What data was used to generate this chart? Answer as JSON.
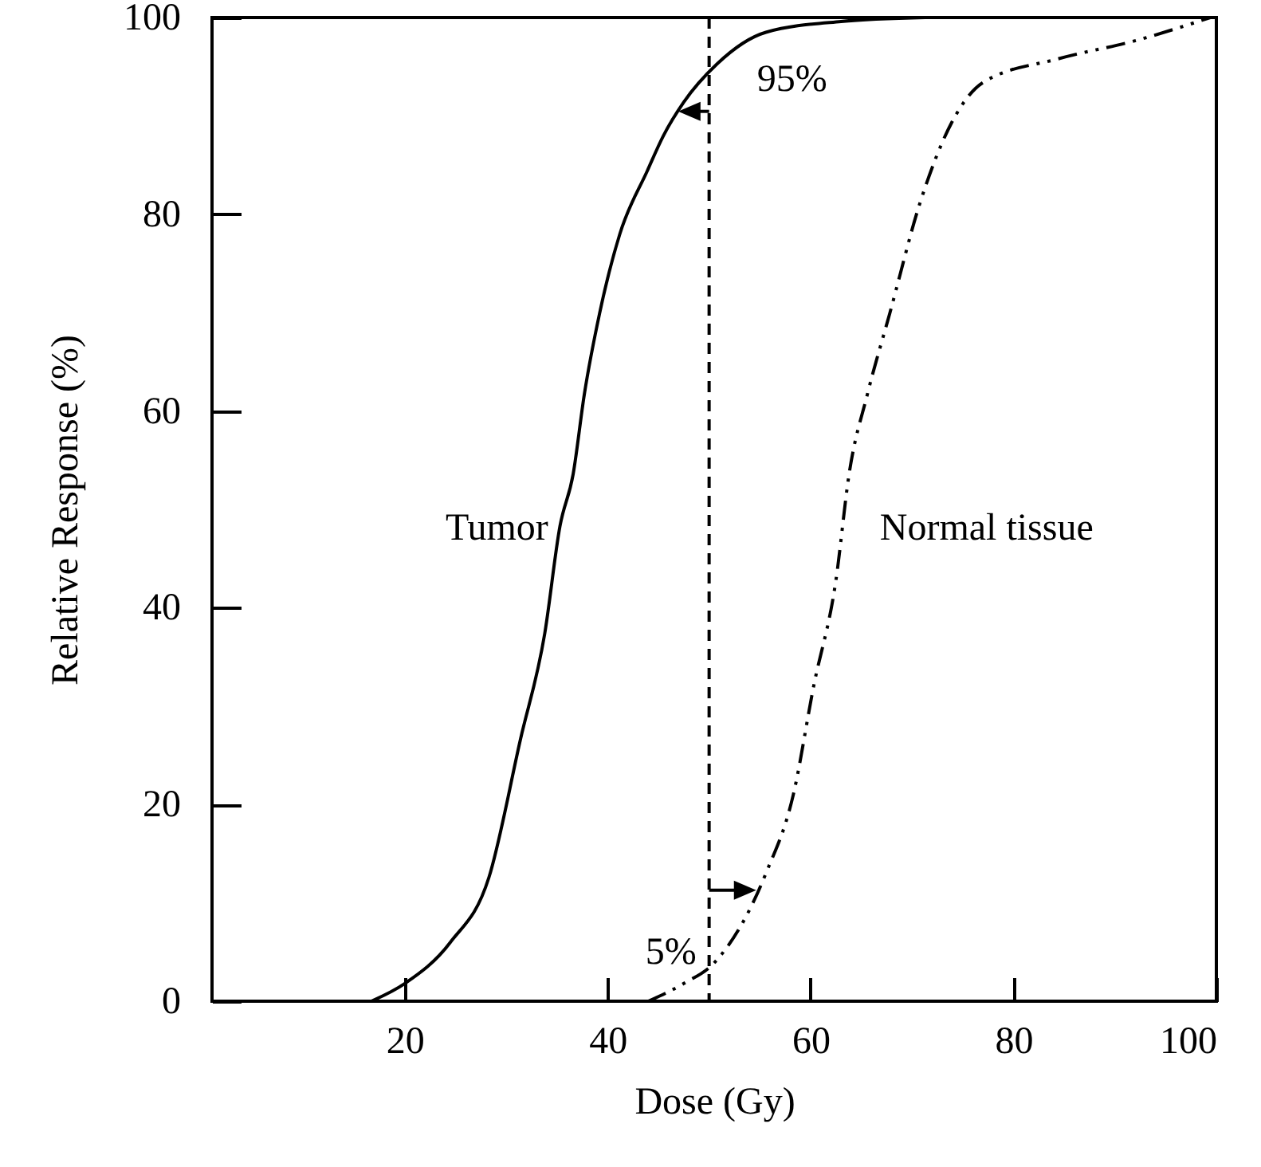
{
  "chart_data": {
    "type": "line",
    "xlabel": "Dose (Gy)",
    "ylabel": "Relative Response (%)",
    "xlim": [
      1,
      100
    ],
    "ylim": [
      0,
      100
    ],
    "xticks": [
      20,
      40,
      60,
      80,
      100
    ],
    "yticks": [
      0,
      20,
      40,
      60,
      80,
      100
    ],
    "series": [
      {
        "name": "Tumor",
        "color": "#000000",
        "line_style": "solid",
        "x": [
          16.7,
          20,
          24.5,
          28.3,
          31.4,
          33.8,
          35.3,
          36.6,
          37.7,
          39.2,
          41.2,
          43.9,
          45.5,
          47.5,
          50.8,
          55.6,
          63,
          71.3
        ],
        "values": [
          0,
          1.8,
          6,
          12.6,
          26.6,
          37.4,
          48.3,
          53.6,
          61.7,
          69.9,
          78,
          84.4,
          88,
          91.4,
          95.3,
          98.5,
          99.6,
          100
        ]
      },
      {
        "name": "Normal tissue",
        "color": "#000000",
        "line_style": "dashed",
        "x": [
          44,
          47.5,
          50.5,
          55.6,
          58.3,
          60.3,
          62.5,
          63.8,
          65.6,
          67.8,
          70.8,
          73.9,
          77,
          84.4,
          92.2,
          99.4
        ],
        "values": [
          0,
          1.8,
          3.9,
          13,
          21,
          32,
          42.8,
          53.6,
          61.7,
          69.9,
          81.2,
          89.3,
          93.4,
          95.8,
          97.7,
          100
        ]
      }
    ],
    "ref_lines": [
      {
        "axis": "x",
        "value": 50,
        "color": "#000000",
        "line_style": "dashed"
      }
    ],
    "annotations": [
      {
        "text": "95%",
        "x": 50,
        "y": 95
      },
      {
        "text": "5%",
        "x": 50,
        "y": 4
      }
    ]
  }
}
